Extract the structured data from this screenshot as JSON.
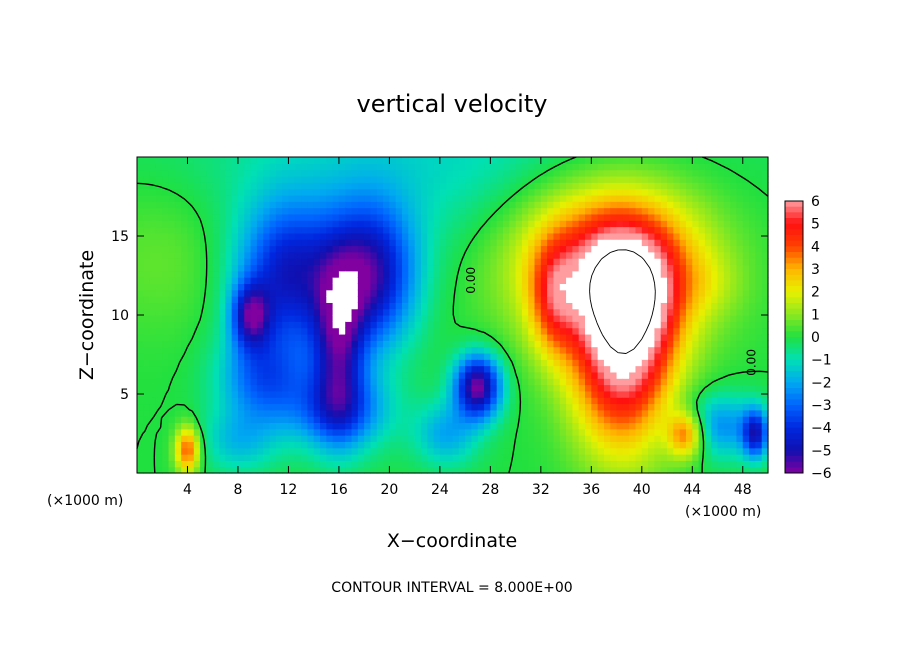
{
  "chart_data": {
    "type": "heatmap",
    "title": "vertical velocity",
    "xlabel": "X−coordinate",
    "ylabel": "Z−coordinate",
    "x_unit_left": "(×1000 m)",
    "x_unit_right": "(×1000 m)",
    "xlim": [
      0,
      50
    ],
    "ylim": [
      0,
      20
    ],
    "x_ticks": [
      {
        "value": 4,
        "label": "4"
      },
      {
        "value": 8,
        "label": "8"
      },
      {
        "value": 12,
        "label": "12"
      },
      {
        "value": 16,
        "label": "16"
      },
      {
        "value": 20,
        "label": "20"
      },
      {
        "value": 24,
        "label": "24"
      },
      {
        "value": 28,
        "label": "28"
      },
      {
        "value": 32,
        "label": "32"
      },
      {
        "value": 36,
        "label": "36"
      },
      {
        "value": 40,
        "label": "40"
      },
      {
        "value": 44,
        "label": "44"
      },
      {
        "value": 48,
        "label": "48"
      }
    ],
    "y_ticks": [
      {
        "value": 5,
        "label": "5"
      },
      {
        "value": 10,
        "label": "10"
      },
      {
        "value": 15,
        "label": "15"
      }
    ],
    "colorbar": {
      "min": -6,
      "max": 6,
      "labels": [
        {
          "value": 6,
          "label": "6"
        },
        {
          "value": 5,
          "label": "5"
        },
        {
          "value": 4,
          "label": "4"
        },
        {
          "value": 3,
          "label": "3"
        },
        {
          "value": 2,
          "label": "2"
        },
        {
          "value": 1,
          "label": "1"
        },
        {
          "value": 0,
          "label": "0"
        },
        {
          "value": -1,
          "label": "−1"
        },
        {
          "value": -2,
          "label": "−2"
        },
        {
          "value": -3,
          "label": "−3"
        },
        {
          "value": -4,
          "label": "−4"
        },
        {
          "value": -5,
          "label": "−5"
        },
        {
          "value": -6,
          "label": "−6"
        }
      ],
      "color_stops": [
        {
          "value": -6,
          "color": "#8000a0"
        },
        {
          "value": -5,
          "color": "#1010b0"
        },
        {
          "value": -4,
          "color": "#0028e0"
        },
        {
          "value": -3,
          "color": "#0064ff"
        },
        {
          "value": -2,
          "color": "#00aaf0"
        },
        {
          "value": -1,
          "color": "#00e0b4"
        },
        {
          "value": 0,
          "color": "#20e040"
        },
        {
          "value": 1,
          "color": "#8ce820"
        },
        {
          "value": 2,
          "color": "#e8f000"
        },
        {
          "value": 3,
          "color": "#ffb400"
        },
        {
          "value": 4,
          "color": "#ff4000"
        },
        {
          "value": 5,
          "color": "#ff1010"
        },
        {
          "value": 6,
          "color": "#ff9ca0"
        }
      ]
    },
    "contour_labels": [
      {
        "text": "0.00",
        "x": 26.8,
        "z": 12.2
      },
      {
        "text": "0.00",
        "x": 49.0,
        "z": 7.0
      }
    ],
    "features": [
      {
        "x": 23.0,
        "z": 20.0,
        "sx": 20.0,
        "sz": 6.0,
        "amp": -1.2
      },
      {
        "x": 2.0,
        "z": 14.0,
        "sx": 6.0,
        "sz": 5.0,
        "amp": 0.7
      },
      {
        "x": 12.0,
        "z": 12.5,
        "sx": 4.0,
        "sz": 4.5,
        "amp": -4.5
      },
      {
        "x": 18.5,
        "z": 12.5,
        "sx": 3.5,
        "sz": 4.5,
        "amp": -5.0
      },
      {
        "x": 9.0,
        "z": 10.0,
        "sx": 1.5,
        "sz": 2.0,
        "amp": -4.0
      },
      {
        "x": 16.0,
        "z": 8.0,
        "sx": 2.0,
        "sz": 5.0,
        "amp": -4.0
      },
      {
        "x": 10.0,
        "z": 6.0,
        "sx": 3.5,
        "sz": 3.0,
        "amp": -3.0
      },
      {
        "x": 16.0,
        "z": 4.0,
        "sx": 4.0,
        "sz": 2.5,
        "amp": -3.0
      },
      {
        "x": 27.0,
        "z": 5.5,
        "sx": 1.8,
        "sz": 2.0,
        "amp": -6.0
      },
      {
        "x": 24.5,
        "z": 2.5,
        "sx": 2.5,
        "sz": 2.0,
        "amp": -2.0
      },
      {
        "x": 37.5,
        "z": 13.5,
        "sx": 7.5,
        "sz": 5.0,
        "amp": 5.0
      },
      {
        "x": 38.5,
        "z": 7.5,
        "sx": 4.0,
        "sz": 6.0,
        "amp": 6.0
      },
      {
        "x": 39.0,
        "z": 11.5,
        "sx": 3.5,
        "sz": 3.5,
        "amp": 3.0
      },
      {
        "x": 33.0,
        "z": 11.0,
        "sx": 1.8,
        "sz": 3.5,
        "amp": 2.5
      },
      {
        "x": 43.5,
        "z": 2.5,
        "sx": 1.5,
        "sz": 1.5,
        "amp": 4.0
      },
      {
        "x": 4.0,
        "z": 1.5,
        "sx": 1.0,
        "sz": 1.5,
        "amp": 4.0
      },
      {
        "x": 8.0,
        "z": 2.0,
        "sx": 3.0,
        "sz": 2.0,
        "amp": -1.5
      },
      {
        "x": 46.0,
        "z": 3.0,
        "sx": 3.5,
        "sz": 2.0,
        "amp": -2.5
      },
      {
        "x": 49.0,
        "z": 2.5,
        "sx": 1.0,
        "sz": 1.5,
        "amp": -4.0
      },
      {
        "x": 45.5,
        "z": 12.0,
        "sx": 2.5,
        "sz": 2.0,
        "amp": 0.5
      }
    ],
    "note": "CONTOUR INTERVAL = 8.000E+00"
  }
}
